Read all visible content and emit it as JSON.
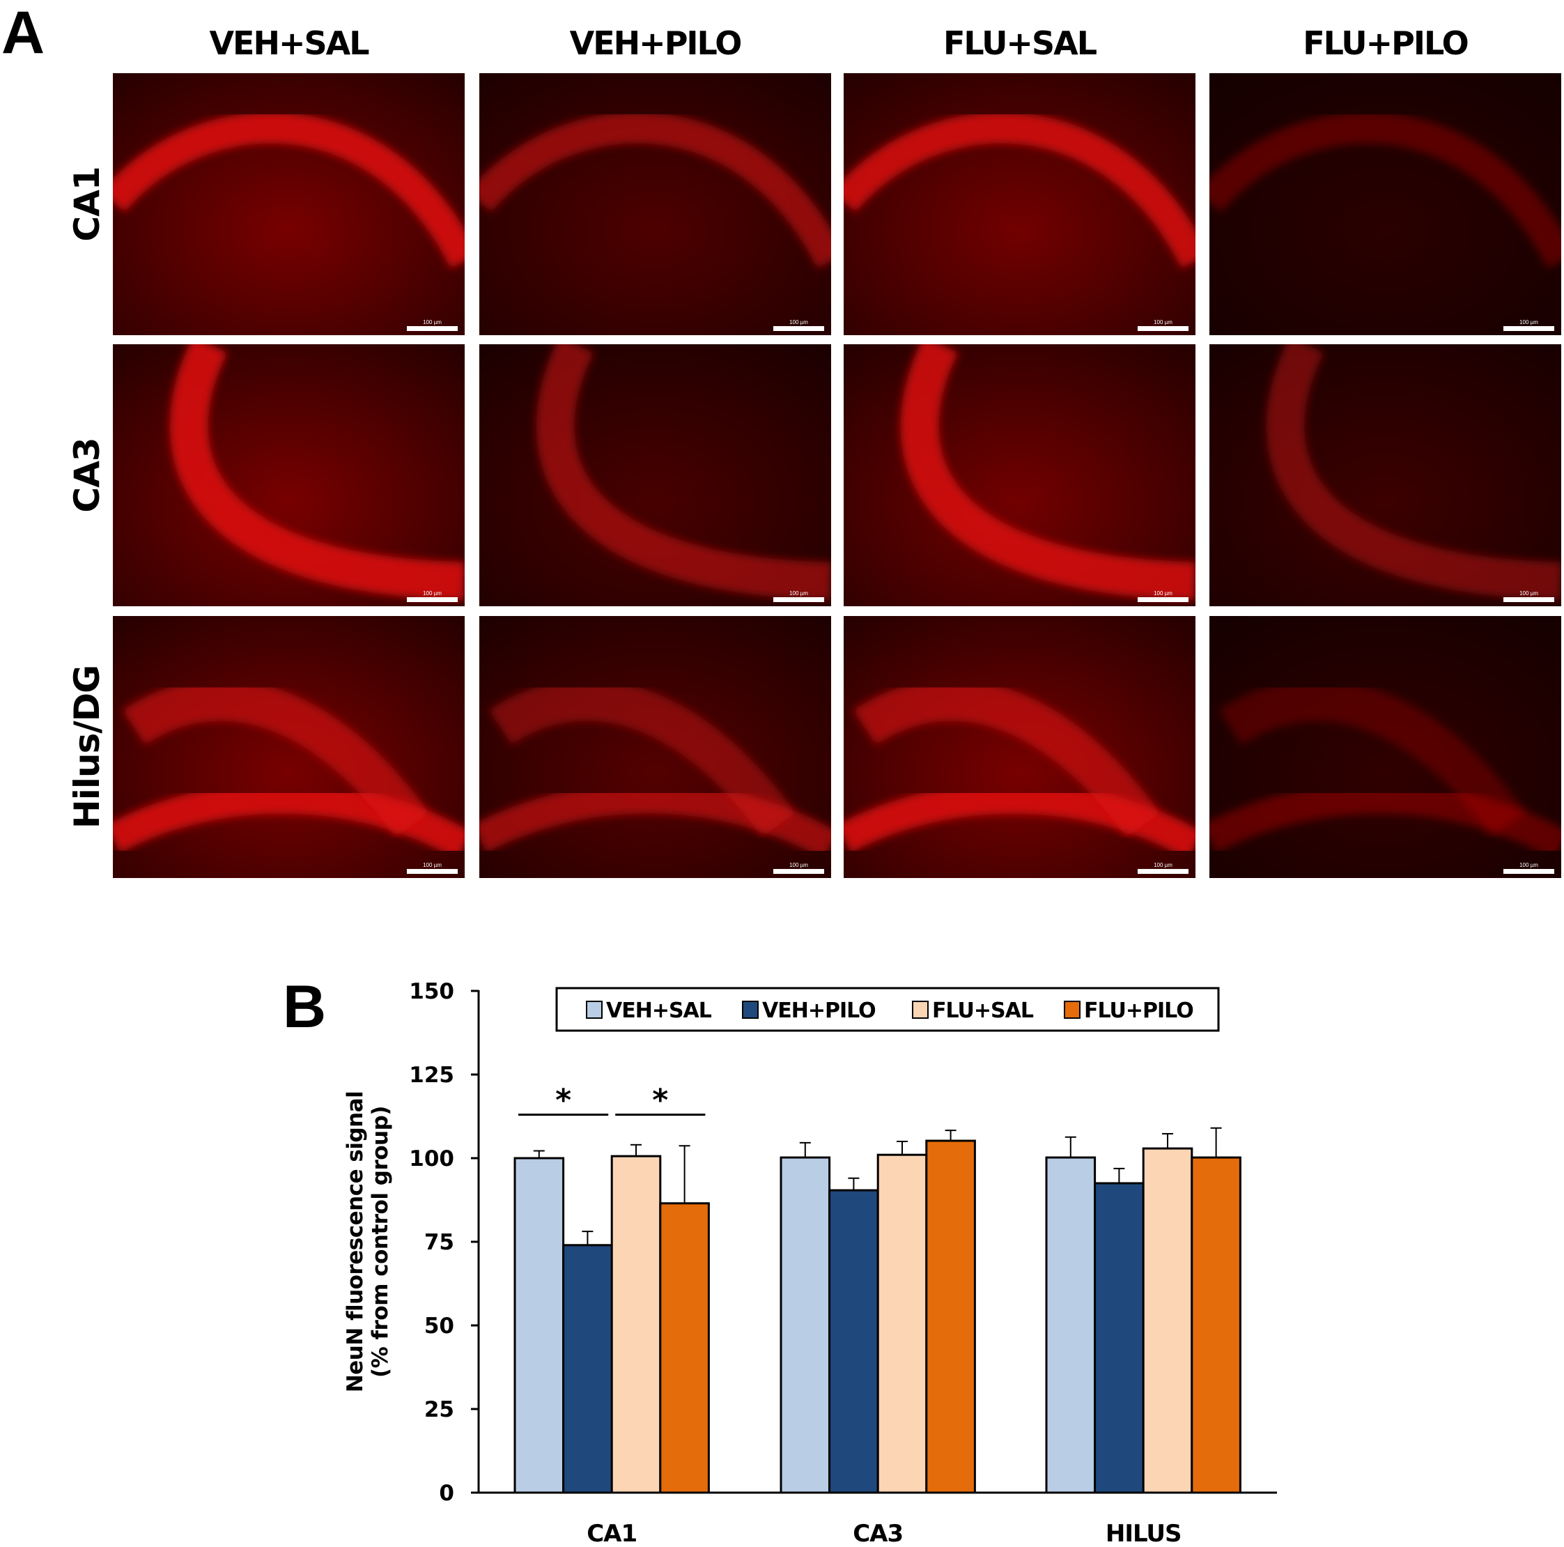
{
  "figure": {
    "panel_a_label": "A",
    "panel_b_label": "B",
    "columns": [
      "VEH+SAL",
      "VEH+PILO",
      "FLU+SAL",
      "FLU+PILO"
    ],
    "rows": [
      "CA1",
      "CA3",
      "Hilus/DG"
    ],
    "scale_bar_label": "100 µm",
    "micrograph_tint": "#e01010",
    "micrograph_brightness": [
      [
        1.0,
        0.65,
        0.95,
        0.35
      ],
      [
        1.0,
        0.6,
        0.95,
        0.5
      ],
      [
        1.0,
        0.7,
        1.0,
        0.4
      ]
    ]
  },
  "chart_data": {
    "type": "bar",
    "title": "",
    "xlabel": "",
    "ylabel": "NeuN fluorescence signal",
    "ylabel_line2": "(% from control group)",
    "ylim": [
      0,
      150
    ],
    "yticks": [
      0,
      25,
      50,
      75,
      100,
      125,
      150
    ],
    "grid": false,
    "legend_position": "top",
    "categories": [
      "CA1",
      "CA3",
      "HILUS"
    ],
    "series": [
      {
        "name": "VEH+SAL",
        "color": "#B9CDE5",
        "values": [
          100,
          100.2,
          100.2
        ],
        "errors": [
          2.2,
          4.4,
          6.1
        ]
      },
      {
        "name": "VEH+PILO",
        "color": "#1F497D",
        "values": [
          74,
          90.4,
          92.5
        ],
        "errors": [
          4.1,
          3.6,
          4.4
        ]
      },
      {
        "name": "FLU+SAL",
        "color": "#FCD5B5",
        "values": [
          100.6,
          101,
          102.9
        ],
        "errors": [
          3.4,
          4.0,
          4.4
        ]
      },
      {
        "name": "FLU+PILO",
        "color": "#E46C0A",
        "values": [
          86.5,
          105.2,
          100.2
        ],
        "errors": [
          17.2,
          3.1,
          8.8
        ]
      }
    ],
    "significance": [
      {
        "category": "CA1",
        "from_series": 0,
        "to_series": 1,
        "label": "*",
        "level": 113
      },
      {
        "category": "CA1",
        "from_series": 2,
        "to_series": 3,
        "label": "*",
        "level": 113
      }
    ]
  }
}
